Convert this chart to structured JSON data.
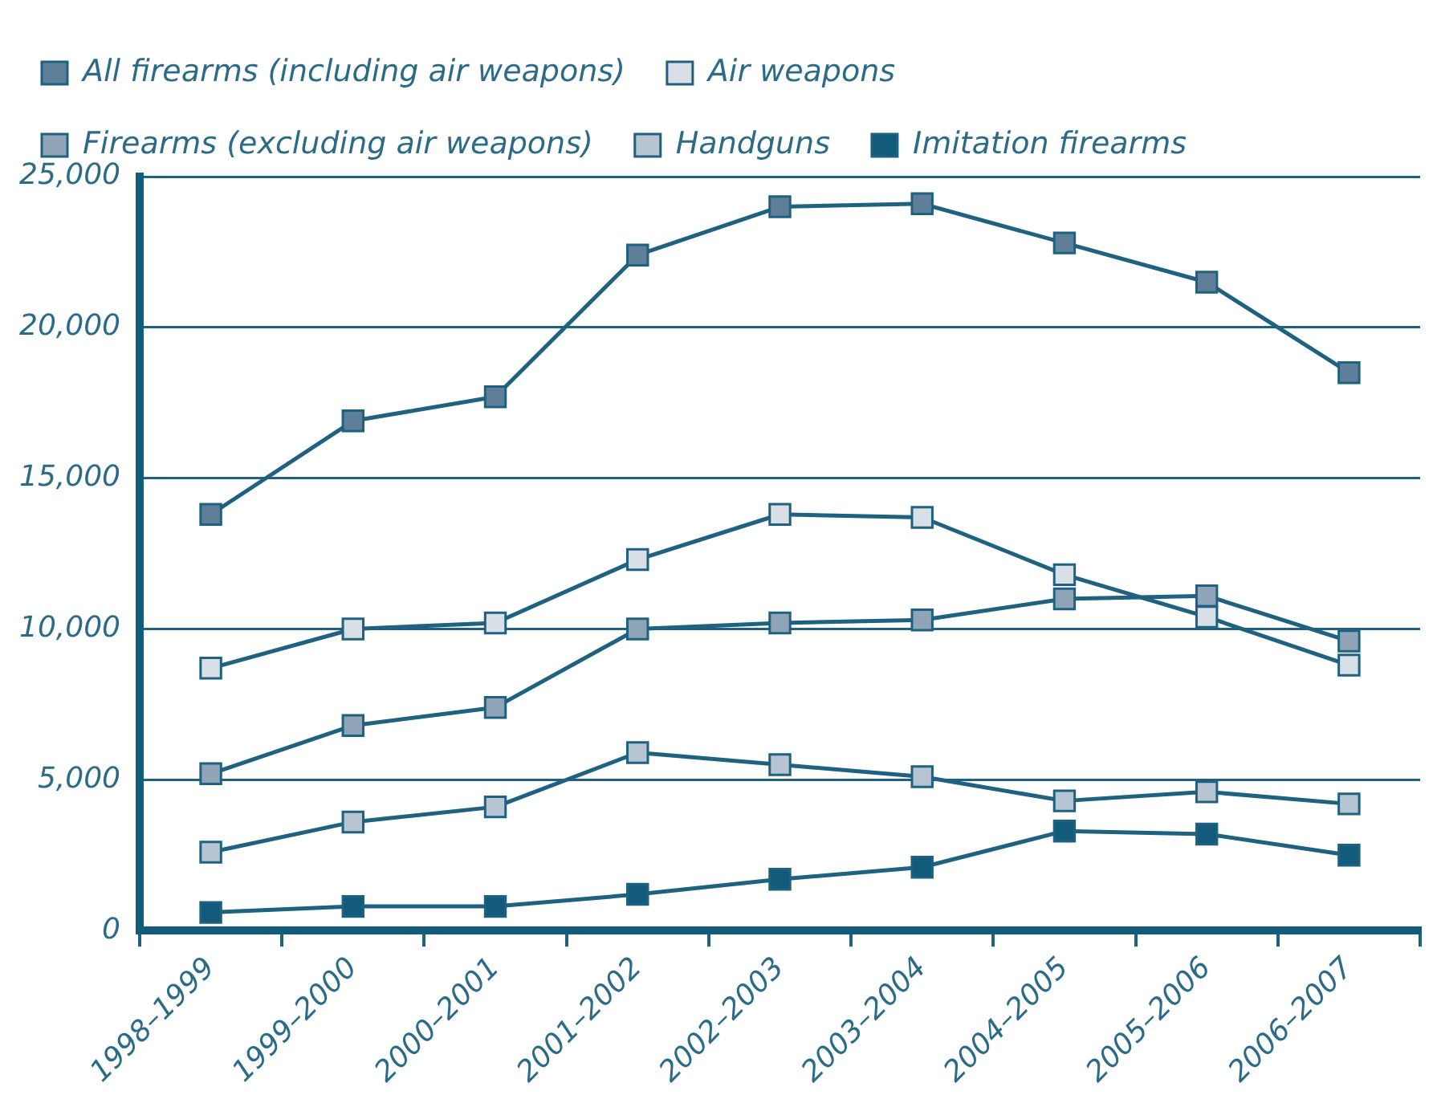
{
  "chart_data": {
    "type": "line",
    "categories": [
      "1998–1999",
      "1999–2000",
      "2000–2001",
      "2001–2002",
      "2002–2003",
      "2003–2004",
      "2004–2005",
      "2005–2006",
      "2006–2007"
    ],
    "ylim": [
      0,
      25000
    ],
    "yticks": [
      {
        "value": 0,
        "label": "0"
      },
      {
        "value": 5000,
        "label": "5,000"
      },
      {
        "value": 10000,
        "label": "10,000"
      },
      {
        "value": 15000,
        "label": "15,000"
      },
      {
        "value": 20000,
        "label": "20,000"
      },
      {
        "value": 25000,
        "label": "25,000"
      }
    ],
    "grid": "y",
    "legend": "top",
    "marker": "square",
    "line_style": "solid",
    "series": [
      {
        "name": "All firearms (including air weapons)",
        "color": "#5f7f99",
        "values": [
          13800,
          16900,
          17700,
          22400,
          24000,
          24100,
          22800,
          21500,
          18500
        ]
      },
      {
        "name": "Air weapons",
        "color": "#d8dfe6",
        "values": [
          8700,
          10000,
          10200,
          12300,
          13800,
          13700,
          11800,
          10400,
          8800
        ]
      },
      {
        "name": "Firearms (excluding air weapons)",
        "color": "#90a4b8",
        "values": [
          5200,
          6800,
          7400,
          10000,
          10200,
          10300,
          11000,
          11100,
          9600
        ]
      },
      {
        "name": "Handguns",
        "color": "#b7c5d2",
        "values": [
          2600,
          3600,
          4100,
          5900,
          5500,
          5100,
          4300,
          4600,
          4200
        ]
      },
      {
        "name": "Imitation firearms",
        "color": "#135b7a",
        "values": [
          600,
          800,
          800,
          1200,
          1700,
          2100,
          3300,
          3200,
          2500
        ]
      }
    ]
  }
}
